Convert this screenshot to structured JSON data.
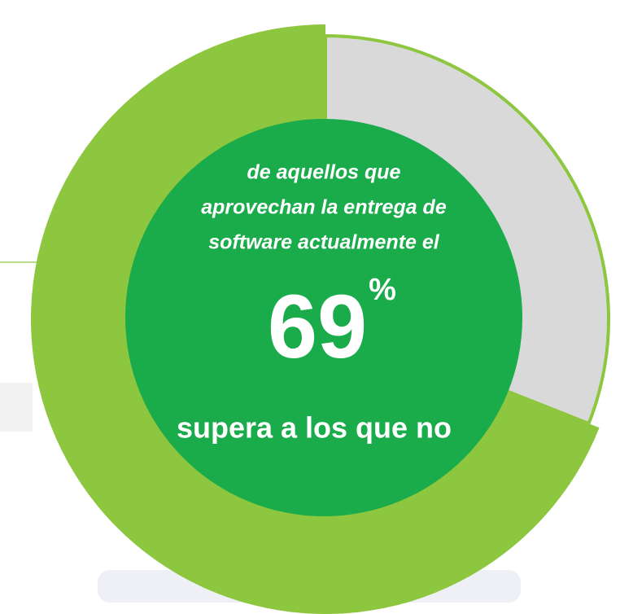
{
  "chart_data": {
    "type": "donut",
    "categories": [
      null,
      null
    ],
    "values": [
      69,
      31
    ],
    "colors": [
      "#8dc63f",
      "#d9d9d9"
    ],
    "text_lines": [
      "de aquellos que",
      "aprovechan la entrega de",
      "software actualmente el"
    ],
    "unit": "%",
    "footer_text": "supera a los que no"
  }
}
